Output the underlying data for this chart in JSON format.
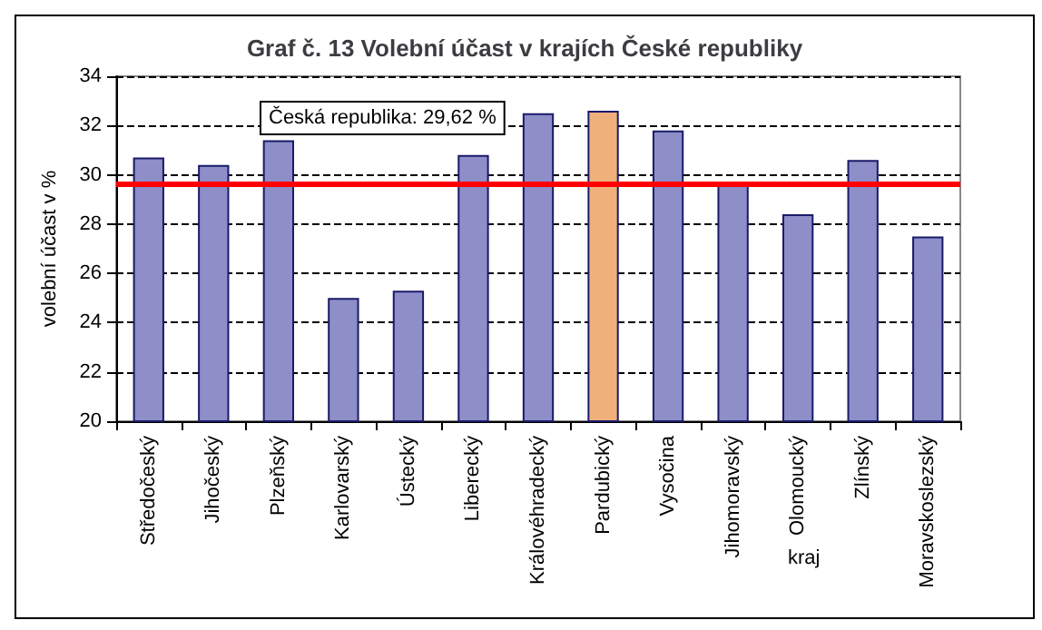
{
  "chart_data": {
    "type": "bar",
    "title": "Graf č. 13 Volební účast v krajích České republiky",
    "xlabel": "kraj",
    "ylabel": "volební účast v %",
    "categories": [
      "Středočeský",
      "Jihočeský",
      "Plzeňský",
      "Karlovarský",
      "Ústecký",
      "Liberecký",
      "Královéhradecký",
      "Pardubický",
      "Vysočina",
      "Jihomoravský",
      "Olomoucký",
      "Zlínský",
      "Moravskoslezský"
    ],
    "values": [
      30.7,
      30.4,
      31.4,
      25.0,
      25.3,
      30.8,
      32.5,
      32.6,
      31.8,
      29.6,
      28.4,
      30.6,
      27.5
    ],
    "colors": [
      "#8e8ec8",
      "#8e8ec8",
      "#8e8ec8",
      "#8e8ec8",
      "#8e8ec8",
      "#8e8ec8",
      "#8e8ec8",
      "#f0b07c",
      "#8e8ec8",
      "#8e8ec8",
      "#8e8ec8",
      "#8e8ec8",
      "#8e8ec8"
    ],
    "ylim": [
      20,
      34
    ],
    "yticks": [
      20,
      22,
      24,
      26,
      28,
      30,
      32,
      34
    ],
    "grid": "y",
    "ref_lines": [
      {
        "axis": "y",
        "value": 29.62,
        "label": "Česká republika: 29,62 %",
        "color": "#ff0000",
        "line_style": "solid"
      }
    ]
  }
}
